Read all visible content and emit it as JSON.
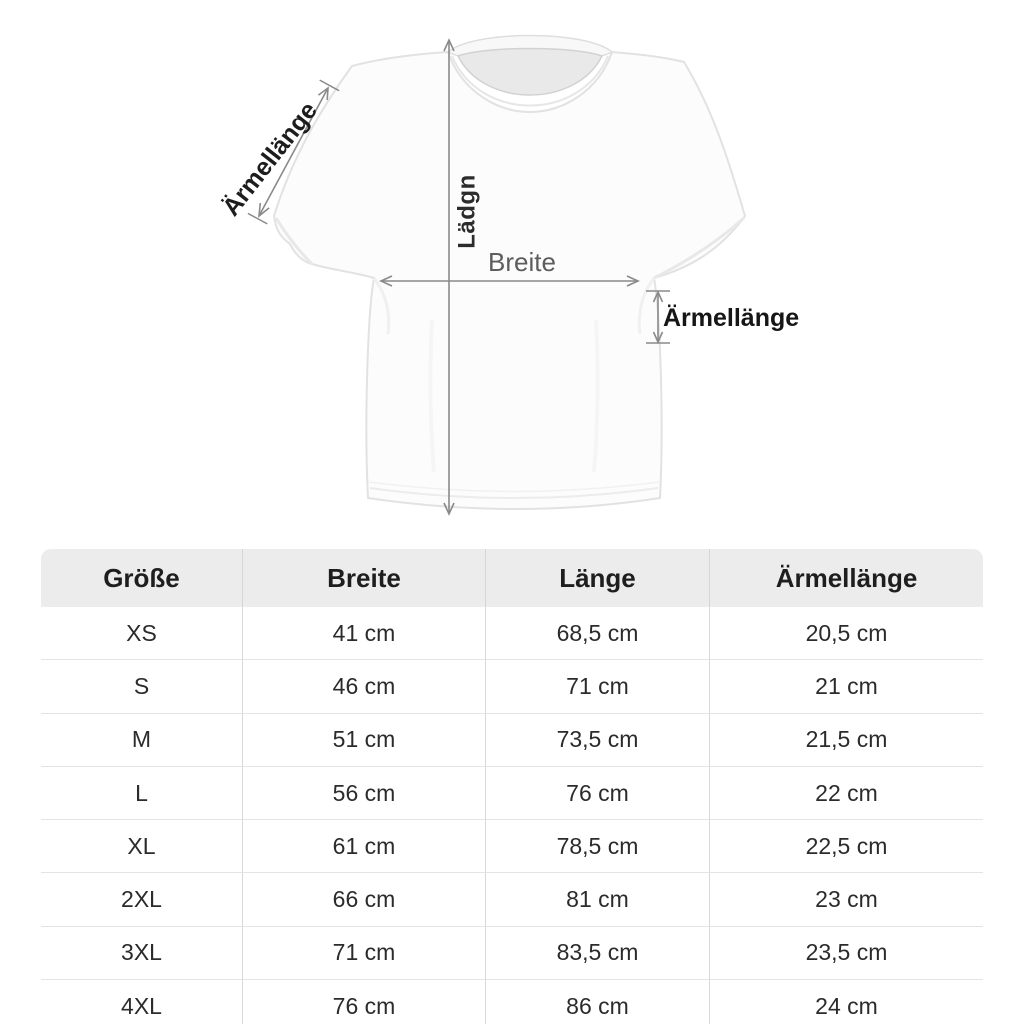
{
  "diagram": {
    "sleeve_left_label": "Ärmellänge",
    "length_label": "Lädgn",
    "width_label": "Breite",
    "sleeve_right_label": "Ärmellänge",
    "arrow_color": "#8a8a8a",
    "shirt_fill": "#fcfcfc",
    "shirt_outline": "#e2e2e2"
  },
  "table": {
    "header_bg": "#ececec",
    "header_text_color": "#1e1e1e",
    "cell_text_color": "#2b2b2b",
    "headers": [
      "Größe",
      "Breite",
      "Länge",
      "Ärmellänge"
    ],
    "rows": [
      {
        "size": "XS",
        "breite": "41 cm",
        "laenge": "68,5 cm",
        "aermellaenge": "20,5 cm"
      },
      {
        "size": "S",
        "breite": "46 cm",
        "laenge": "71 cm",
        "aermellaenge": "21 cm"
      },
      {
        "size": "M",
        "breite": "51 cm",
        "laenge": "73,5 cm",
        "aermellaenge": "21,5 cm"
      },
      {
        "size": "L",
        "breite": "56 cm",
        "laenge": "76 cm",
        "aermellaenge": "22 cm"
      },
      {
        "size": "XL",
        "breite": "61 cm",
        "laenge": "78,5 cm",
        "aermellaenge": "22,5 cm"
      },
      {
        "size": "2XL",
        "breite": "66 cm",
        "laenge": "81 cm",
        "aermellaenge": "23 cm"
      },
      {
        "size": "3XL",
        "breite": "71 cm",
        "laenge": "83,5 cm",
        "aermellaenge": "23,5 cm"
      },
      {
        "size": "4XL",
        "breite": "76 cm",
        "laenge": "86 cm",
        "aermellaenge": "24 cm"
      }
    ]
  }
}
